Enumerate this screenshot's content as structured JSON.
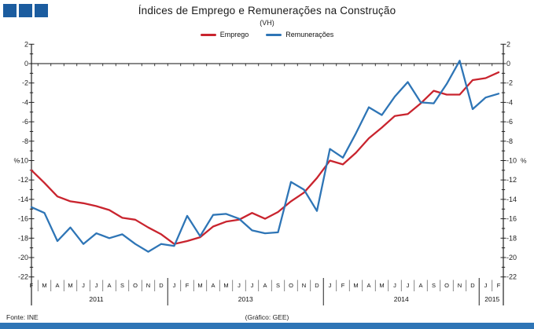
{
  "header": {
    "title": "Índices de Emprego e Remunerações na Construção",
    "subtitle": "(VH)"
  },
  "legend": [
    {
      "label": "Emprego",
      "color": "#c9242e"
    },
    {
      "label": "Remunerações",
      "color": "#2e75b6"
    }
  ],
  "footer": {
    "source": "Fonte: INE",
    "credit": "(Gráfico: GEE)"
  },
  "colors": {
    "logo_squares": "#1b5c9f",
    "bottom_bar": "#2e75b6",
    "axis": "#222222"
  },
  "chart_data": {
    "type": "line",
    "title": "Índices de Emprego e Remunerações na Construção",
    "subtitle": "(VH)",
    "y_unit": "%",
    "y_unit_at": -10,
    "ylim": [
      -22,
      2
    ],
    "y_major_step": 2,
    "y_minor_step": 1,
    "zero_line": true,
    "grid": false,
    "legend_position": "top",
    "x_labels": [
      "F",
      "M",
      "A",
      "M",
      "J",
      "J",
      "A",
      "S",
      "O",
      "N",
      "D",
      "J",
      "F",
      "M",
      "A",
      "M",
      "J",
      "J",
      "A",
      "S",
      "O",
      "N",
      "D",
      "J",
      "F",
      "M",
      "A",
      "M",
      "J",
      "J",
      "A",
      "S",
      "O",
      "N",
      "D",
      "J",
      "F"
    ],
    "year_groups": [
      {
        "label": "2011",
        "from": 0,
        "to": 10
      },
      {
        "label": "2013",
        "from": 11,
        "to": 22
      },
      {
        "label": "2014",
        "from": 23,
        "to": 34
      },
      {
        "label": "2015",
        "from": 35,
        "to": 36
      }
    ],
    "series": [
      {
        "name": "Emprego",
        "color": "#c9242e",
        "values": [
          -11.0,
          -12.3,
          -13.7,
          -14.2,
          -14.4,
          -14.7,
          -15.1,
          -15.9,
          -16.1,
          -16.9,
          -17.6,
          -18.6,
          -18.3,
          -17.9,
          -16.8,
          -16.3,
          -16.1,
          -15.4,
          -16.0,
          -15.3,
          -14.2,
          -13.3,
          -11.8,
          -10.0,
          -10.4,
          -9.2,
          -7.7,
          -6.6,
          -5.4,
          -5.2,
          -4.1,
          -2.8,
          -3.2,
          -3.2,
          -1.7,
          -1.5,
          -0.9
        ]
      },
      {
        "name": "Remunerações",
        "color": "#2e75b6",
        "values": [
          -14.8,
          -15.4,
          -18.3,
          -16.9,
          -18.6,
          -17.5,
          -18.0,
          -17.6,
          -18.6,
          -19.4,
          -18.6,
          -18.8,
          -15.7,
          -17.8,
          -15.6,
          -15.5,
          -16.0,
          -17.2,
          -17.5,
          -17.4,
          -12.2,
          -13.0,
          -15.2,
          -8.8,
          -9.7,
          -7.2,
          -4.5,
          -5.3,
          -3.4,
          -1.9,
          -4.0,
          -4.1,
          -2.1,
          0.3,
          -4.7,
          -3.5,
          -3.1
        ]
      }
    ]
  }
}
